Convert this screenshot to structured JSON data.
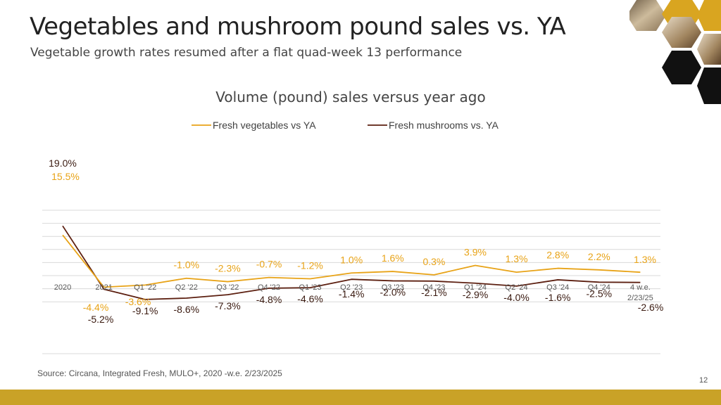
{
  "page": {
    "title": "Vegetables and mushroom pound sales vs. YA",
    "subtitle": "Vegetable growth rates resumed after a flat quad-week 13 performance",
    "source": "Source: Circana, Integrated Fresh, MULO+, 2020 -w.e. 2/23/2025",
    "page_number": "12"
  },
  "chart_data": {
    "type": "line",
    "title": "Volume (pound) sales versus year ago",
    "categories": [
      "2020",
      "2021",
      "Q1 '22",
      "Q2 '22",
      "Q3 '22",
      "Q4 '22",
      "Q1 '23",
      "Q2 '23",
      "Q3 '23",
      "Q4 '23",
      "Q1 '24",
      "Q2 '24",
      "Q3 '24",
      "Q4 '24",
      "4 w.e.\n2/23/25"
    ],
    "series": [
      {
        "name": "Fresh vegetables vs YA",
        "color": "#e8a317",
        "values": [
          15.5,
          -4.4,
          -3.6,
          -1.0,
          -2.3,
          -0.7,
          -1.2,
          1.0,
          1.6,
          0.3,
          3.9,
          1.3,
          2.8,
          2.2,
          1.3
        ],
        "labels": [
          "15.5%",
          "-4.4%",
          "-3.6%",
          "-1.0%",
          "-2.3%",
          "-0.7%",
          "-1.2%",
          "1.0%",
          "1.6%",
          "0.3%",
          "3.9%",
          "1.3%",
          "2.8%",
          "2.2%",
          "1.3%"
        ]
      },
      {
        "name": "Fresh mushrooms vs. YA",
        "color": "#5c1f10",
        "values": [
          19.0,
          -5.2,
          -9.1,
          -8.6,
          -7.3,
          -4.8,
          -4.6,
          -1.4,
          -2.0,
          -2.1,
          -2.9,
          -4.0,
          -1.6,
          -2.5,
          -2.6
        ],
        "labels": [
          "19.0%",
          "-5.2%",
          "-9.1%",
          "-8.6%",
          "-7.3%",
          "-4.8%",
          "-4.6%",
          "-1.4%",
          "-2.0%",
          "-2.1%",
          "-2.9%",
          "-4.0%",
          "-1.6%",
          "-2.5%",
          "-2.6%"
        ]
      }
    ],
    "ylim": [
      -10,
      20
    ],
    "grid": true,
    "legend": "top-center",
    "xlabel": "",
    "ylabel": ""
  },
  "colors": {
    "accent_bar": "#c9a227",
    "grid": "#d9d9d9",
    "axis_label": "#595959"
  },
  "decor": {
    "image": "hexagon-mushroom-vegetable-photos"
  }
}
